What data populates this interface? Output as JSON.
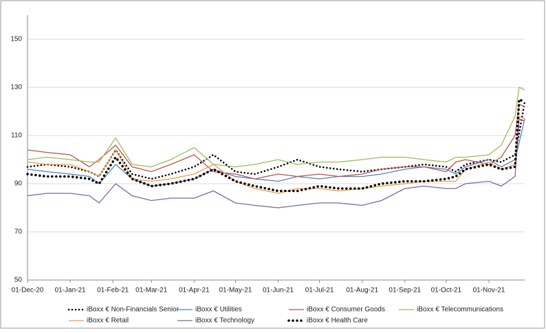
{
  "chart_data": {
    "type": "line",
    "x": [
      "2020-12-01",
      "2020-12-15",
      "2021-01-01",
      "2021-01-15",
      "2021-01-22",
      "2021-02-03",
      "2021-02-15",
      "2021-03-01",
      "2021-03-15",
      "2021-04-01",
      "2021-04-15",
      "2021-05-01",
      "2021-05-15",
      "2021-06-01",
      "2021-06-15",
      "2021-07-01",
      "2021-07-15",
      "2021-08-01",
      "2021-08-15",
      "2021-09-01",
      "2021-09-15",
      "2021-10-01",
      "2021-10-08",
      "2021-10-15",
      "2021-11-01",
      "2021-11-10",
      "2021-11-20",
      "2021-11-23",
      "2021-11-27"
    ],
    "series": [
      {
        "name": "iBoxx € Non-Financials Senior",
        "color": "#000000",
        "style": "dotted",
        "values": [
          97,
          98,
          97,
          95,
          93,
          104,
          94,
          92,
          94,
          97,
          102,
          95,
          94,
          97,
          100,
          97,
          96,
          95,
          96,
          97,
          98,
          97,
          95,
          98,
          100,
          99,
          102,
          111,
          124
        ]
      },
      {
        "name": "iBoxx € Utilities",
        "color": "#4f81bd",
        "style": "solid",
        "values": [
          96,
          95,
          94,
          93,
          90,
          98,
          92,
          89,
          90,
          92,
          96,
          93,
          92,
          91,
          93,
          92,
          93,
          93,
          94,
          96,
          97,
          96,
          94,
          97,
          100,
          97,
          100,
          107,
          117
        ]
      },
      {
        "name": "iBoxx € Consumer Goods",
        "color": "#c0504d",
        "style": "solid",
        "values": [
          104,
          103,
          102,
          97,
          100,
          106,
          97,
          95,
          98,
          102,
          95,
          94,
          92,
          94,
          93,
          94,
          93,
          94,
          96,
          97,
          97,
          95,
          99,
          100,
          98,
          101,
          110,
          123,
          122
        ]
      },
      {
        "name": "iBoxx € Telecommunications",
        "color": "#9bbb59",
        "style": "solid",
        "values": [
          100,
          101,
          100,
          99,
          99,
          109,
          98,
          97,
          100,
          105,
          98,
          97,
          98,
          100,
          98,
          99,
          99,
          100,
          101,
          101,
          100,
          99,
          101,
          101,
          102,
          106,
          118,
          130,
          129
        ]
      },
      {
        "name": "iBoxx € Retail",
        "color": "#f79646",
        "style": "solid",
        "values": [
          99,
          98,
          98,
          95,
          93,
          104,
          92,
          91,
          92,
          94,
          98,
          91,
          88,
          86,
          88,
          88,
          87,
          88,
          89,
          90,
          91,
          91,
          91,
          96,
          99,
          96,
          98,
          118,
          117
        ]
      },
      {
        "name": "iBoxx € Technology",
        "color": "#8064a2",
        "style": "solid",
        "values": [
          85,
          86,
          86,
          85,
          82,
          90,
          85,
          83,
          84,
          84,
          87,
          82,
          81,
          80,
          81,
          82,
          82,
          81,
          83,
          88,
          89,
          88,
          88,
          90,
          91,
          89,
          93,
          117,
          116
        ]
      },
      {
        "name": "iBoxx € Health Care",
        "color": "#000000",
        "style": "bold-dotted",
        "values": [
          94,
          93,
          93,
          92,
          90,
          101,
          92,
          89,
          90,
          92,
          96,
          91,
          89,
          87,
          87,
          89,
          88,
          88,
          90,
          91,
          91,
          92,
          93,
          96,
          98,
          96,
          97,
          125,
          124
        ]
      }
    ],
    "xlim": [
      "2020-12-01",
      "2021-11-27"
    ],
    "xticks": [
      {
        "value": "2020-12-01",
        "label": "01-Dec-20"
      },
      {
        "value": "2021-01-01",
        "label": "01-Jan-21"
      },
      {
        "value": "2021-02-01",
        "label": "01-Feb-21"
      },
      {
        "value": "2021-03-01",
        "label": "01-Mar-21"
      },
      {
        "value": "2021-04-01",
        "label": "01-Apr-21"
      },
      {
        "value": "2021-05-01",
        "label": "01-May-21"
      },
      {
        "value": "2021-06-01",
        "label": "01-Jun-21"
      },
      {
        "value": "2021-07-01",
        "label": "01-Jul-21"
      },
      {
        "value": "2021-08-01",
        "label": "01-Aug-21"
      },
      {
        "value": "2021-09-01",
        "label": "01-Sep-21"
      },
      {
        "value": "2021-10-01",
        "label": "01-Oct-21"
      },
      {
        "value": "2021-11-01",
        "label": "01-Nov-21"
      }
    ],
    "ylim": [
      50,
      160
    ],
    "yticks": [
      50,
      70,
      90,
      110,
      130,
      150
    ],
    "grid": true,
    "legend": "bottom"
  }
}
